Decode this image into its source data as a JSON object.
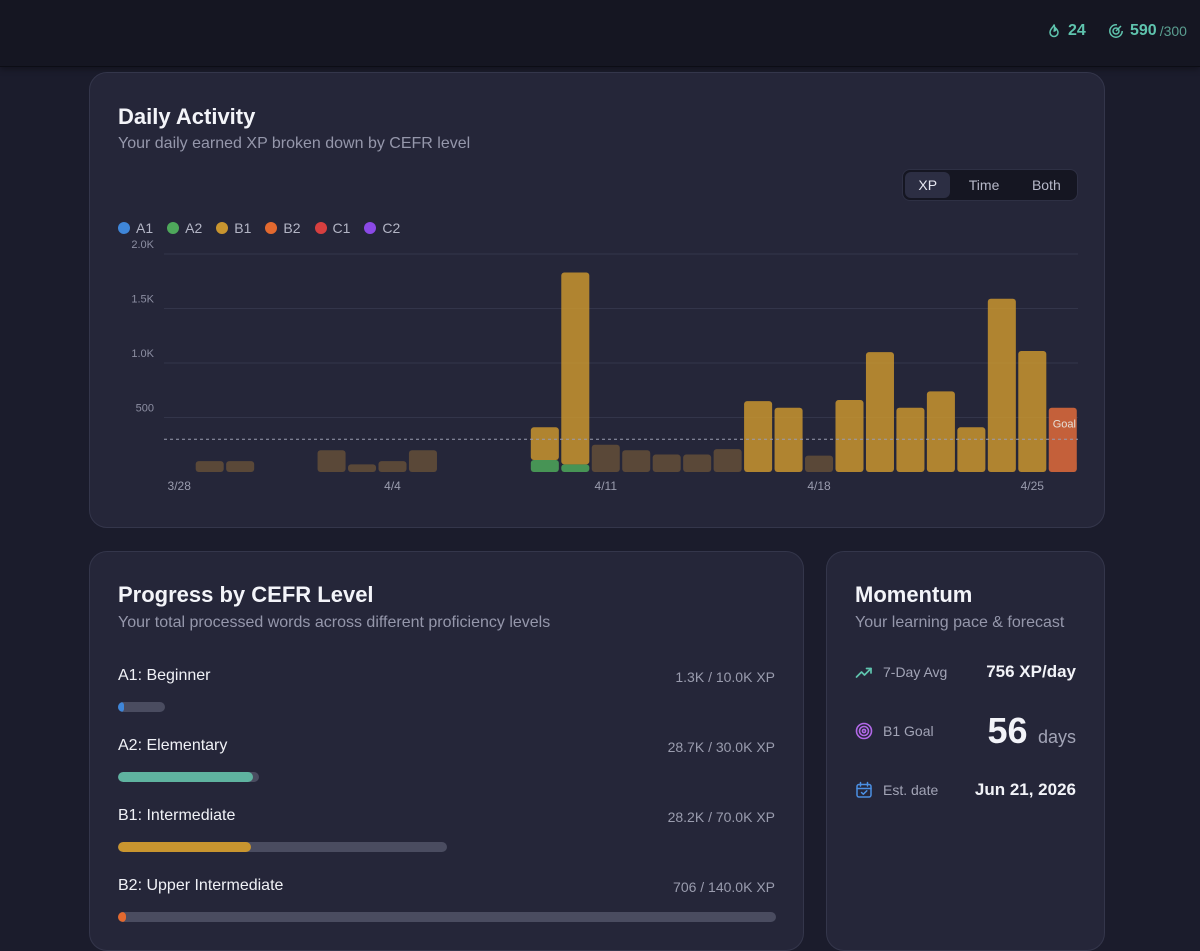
{
  "topbar": {
    "streak": {
      "icon": "flame-icon",
      "value": "24"
    },
    "xp": {
      "icon": "target-progress-icon",
      "value": "590",
      "goal": "/300"
    }
  },
  "activity": {
    "title": "Daily Activity",
    "subtitle": "Your daily earned XP broken down by CEFR level",
    "toggle": [
      {
        "label": "XP",
        "active": true
      },
      {
        "label": "Time",
        "active": false
      },
      {
        "label": "Both",
        "active": false
      }
    ],
    "legend": [
      {
        "label": "A1",
        "color": "#3f86d9"
      },
      {
        "label": "A2",
        "color": "#4ea85b"
      },
      {
        "label": "B1",
        "color": "#c9952f"
      },
      {
        "label": "B2",
        "color": "#e3692f"
      },
      {
        "label": "C1",
        "color": "#d73f3f"
      },
      {
        "label": "C2",
        "color": "#8b49e6"
      }
    ]
  },
  "chart_data": {
    "type": "bar",
    "stacked": true,
    "y_tick_labels": [
      "500",
      "1.0K",
      "1.5K",
      "2.0K"
    ],
    "y_ticks": [
      500,
      1000,
      1500,
      2000
    ],
    "ylim": [
      0,
      2000
    ],
    "x_tick_labels": [
      "3/28",
      "4/4",
      "4/11",
      "4/18",
      "4/25"
    ],
    "x_tick_index": [
      0,
      7,
      14,
      21,
      28
    ],
    "goal": {
      "label": "Goal",
      "value": 300
    },
    "categories": [
      "3/28",
      "3/29",
      "3/30",
      "3/31",
      "4/1",
      "4/2",
      "4/3",
      "4/4",
      "4/5",
      "4/6",
      "4/7",
      "4/8",
      "4/9",
      "4/10",
      "4/11",
      "4/12",
      "4/13",
      "4/14",
      "4/15",
      "4/16",
      "4/17",
      "4/18",
      "4/19",
      "4/20",
      "4/21",
      "4/22",
      "4/23",
      "4/24",
      "4/25",
      "4/26"
    ],
    "series": [
      {
        "name": "A1",
        "color": "#3f86d9",
        "values": [
          0,
          0,
          0,
          0,
          0,
          0,
          0,
          0,
          0,
          0,
          0,
          0,
          0,
          0,
          0,
          0,
          0,
          0,
          0,
          0,
          0,
          0,
          0,
          0,
          0,
          0,
          0,
          0,
          0,
          0
        ]
      },
      {
        "name": "A2",
        "color": "#4ea85b",
        "values": [
          0,
          0,
          0,
          0,
          0,
          0,
          0,
          0,
          0,
          0,
          0,
          0,
          110,
          70,
          0,
          0,
          0,
          0,
          0,
          0,
          0,
          0,
          0,
          0,
          0,
          0,
          0,
          0,
          0,
          0
        ]
      },
      {
        "name": "B1",
        "color": "#c9952f",
        "values": [
          0,
          0,
          0,
          0,
          0,
          0,
          0,
          0,
          0,
          0,
          0,
          0,
          300,
          1760,
          0,
          0,
          0,
          0,
          0,
          650,
          590,
          0,
          660,
          1100,
          590,
          740,
          410,
          1590,
          1110,
          0
        ]
      },
      {
        "name": "B2",
        "color": "#e3692f",
        "values": [
          0,
          0,
          0,
          0,
          0,
          0,
          0,
          0,
          0,
          0,
          0,
          0,
          0,
          0,
          0,
          0,
          0,
          0,
          0,
          0,
          0,
          0,
          0,
          0,
          0,
          0,
          0,
          0,
          0,
          0
        ]
      },
      {
        "name": "C1",
        "color": "#d73f3f",
        "values": [
          0,
          0,
          0,
          0,
          0,
          0,
          0,
          0,
          0,
          0,
          0,
          0,
          0,
          0,
          0,
          0,
          0,
          0,
          0,
          0,
          0,
          0,
          0,
          0,
          0,
          0,
          0,
          0,
          0,
          0
        ]
      },
      {
        "name": "C2",
        "color": "#8b49e6",
        "values": [
          0,
          0,
          0,
          0,
          0,
          0,
          0,
          0,
          0,
          0,
          0,
          0,
          0,
          0,
          0,
          0,
          0,
          0,
          0,
          0,
          0,
          0,
          0,
          0,
          0,
          0,
          0,
          0,
          0,
          0
        ]
      }
    ],
    "below_goal_values": [
      0,
      100,
      100,
      0,
      0,
      200,
      70,
      100,
      200,
      0,
      0,
      0,
      0,
      0,
      250,
      200,
      160,
      160,
      210,
      0,
      0,
      150,
      0,
      0,
      0,
      0,
      0,
      0,
      0,
      110
    ],
    "current_day": {
      "value": 590,
      "color": "#c4603a"
    },
    "grid": true
  },
  "progress": {
    "title": "Progress by CEFR Level",
    "subtitle": "Your total processed words across different proficiency levels",
    "levels": [
      {
        "name": "A1: Beginner",
        "value": "1.3K / 10.0K XP",
        "fraction": 0.13,
        "track_fraction": 0.072,
        "color": "#3f86d9"
      },
      {
        "name": "A2: Elementary",
        "value": "28.7K / 30.0K XP",
        "fraction": 0.957,
        "track_fraction": 0.215,
        "color": "#5fb3a0"
      },
      {
        "name": "B1: Intermediate",
        "value": "28.2K / 70.0K XP",
        "fraction": 0.403,
        "track_fraction": 0.5,
        "color": "#c9952f"
      },
      {
        "name": "B2: Upper Intermediate",
        "value": "706 / 140.0K XP",
        "fraction": 0.005,
        "track_fraction": 1.0,
        "color": "#e3692f"
      }
    ]
  },
  "momentum": {
    "title": "Momentum",
    "subtitle": "Your learning pace & forecast",
    "avg": {
      "icon": "trend-up-icon",
      "label": "7-Day Avg",
      "value": "756 XP/day"
    },
    "goal": {
      "icon": "target-icon",
      "label": "B1 Goal",
      "value": "56",
      "unit": "days"
    },
    "date": {
      "icon": "calendar-check-icon",
      "label": "Est. date",
      "value": "Jun 21, 2026"
    }
  }
}
